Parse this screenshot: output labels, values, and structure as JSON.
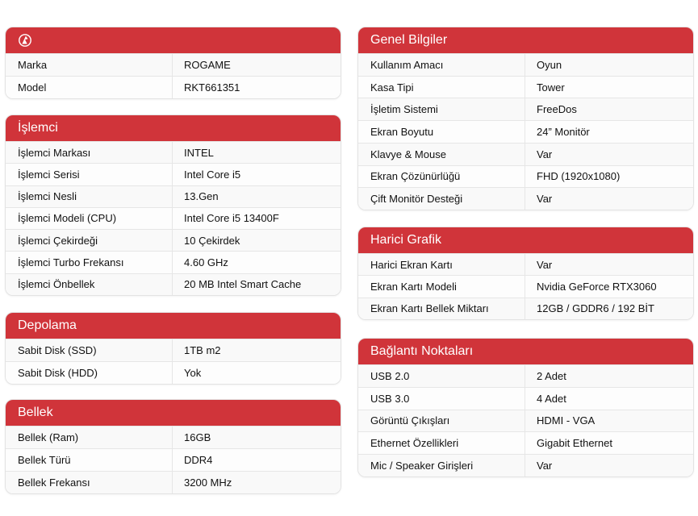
{
  "colors": {
    "header": "#d0343a"
  },
  "panels": [
    {
      "title": "",
      "logo": "rogame-logo-icon",
      "rows": [
        [
          "Marka",
          "ROGAME"
        ],
        [
          "Model",
          "RKT661351"
        ]
      ]
    },
    {
      "title": "İşlemci",
      "rows": [
        [
          "İşlemci Markası",
          "INTEL"
        ],
        [
          "İşlemci Serisi",
          "Intel Core i5"
        ],
        [
          "İşlemci Nesli",
          "13.Gen"
        ],
        [
          "İşlemci Modeli (CPU)",
          "Intel Core i5 13400F"
        ],
        [
          "İşlemci Çekirdeği",
          "10 Çekirdek"
        ],
        [
          "İşlemci Turbo Frekansı",
          "4.60 GHz"
        ],
        [
          "İşlemci Önbellek",
          "20 MB Intel Smart Cache"
        ]
      ]
    },
    {
      "title": "Depolama",
      "rows": [
        [
          "Sabit Disk (SSD)",
          "1TB m2"
        ],
        [
          "Sabit Disk (HDD)",
          "Yok"
        ]
      ]
    },
    {
      "title": "Bellek",
      "rows": [
        [
          "Bellek (Ram)",
          "16GB"
        ],
        [
          "Bellek Türü",
          "DDR4"
        ],
        [
          "Bellek Frekansı",
          "3200 MHz"
        ]
      ]
    },
    {
      "title": "Genel Bilgiler",
      "rows": [
        [
          "Kullanım Amacı",
          "Oyun"
        ],
        [
          "Kasa Tipi",
          "Tower"
        ],
        [
          "İşletim Sistemi",
          "FreeDos"
        ],
        [
          "Ekran Boyutu",
          "24” Monitör"
        ],
        [
          "Klavye & Mouse",
          "Var"
        ],
        [
          "Ekran Çözünürlüğü",
          "FHD (1920x1080)"
        ],
        [
          "Çift Monitör Desteği",
          "Var"
        ]
      ]
    },
    {
      "title": "Harici Grafik",
      "rows": [
        [
          "Harici Ekran Kartı",
          "Var"
        ],
        [
          "Ekran Kartı Modeli",
          "Nvidia GeForce RTX3060"
        ],
        [
          "Ekran Kartı Bellek Miktarı",
          "12GB / GDDR6 / 192 BİT"
        ]
      ]
    },
    {
      "title": "Bağlantı Noktaları",
      "rows": [
        [
          "USB 2.0",
          "2 Adet"
        ],
        [
          "USB 3.0",
          "4 Adet"
        ],
        [
          "Görüntü Çıkışları",
          "HDMI - VGA"
        ],
        [
          "Ethernet Özellikleri",
          "Gigabit Ethernet"
        ],
        [
          "Mic / Speaker Girişleri",
          "Var"
        ]
      ]
    }
  ]
}
